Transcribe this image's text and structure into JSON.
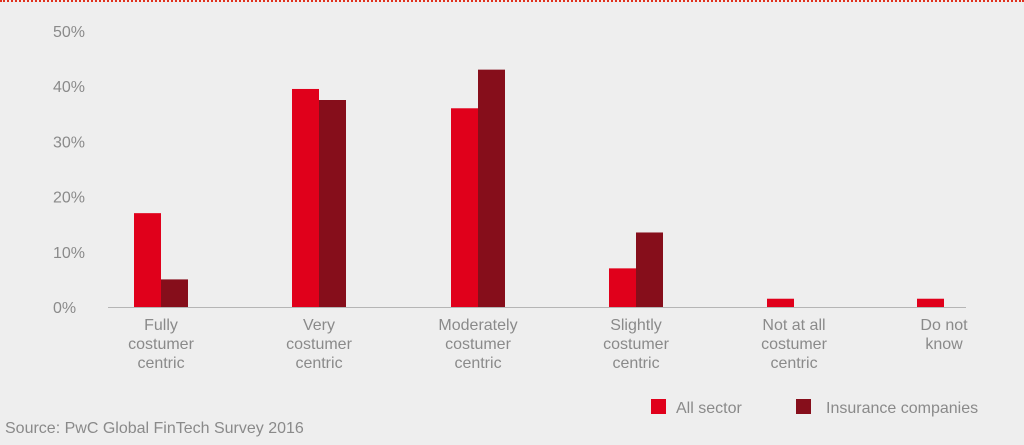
{
  "chart_data": {
    "type": "bar",
    "categories": [
      [
        "Fully",
        "costumer",
        "centric"
      ],
      [
        "Very",
        "costumer",
        "centric"
      ],
      [
        "Moderately",
        "costumer",
        "centric"
      ],
      [
        "Slightly",
        "costumer",
        "centric"
      ],
      [
        "Not at all",
        "costumer",
        "centric"
      ],
      [
        "Do not",
        "know"
      ]
    ],
    "series": [
      {
        "name": "All sector",
        "color": "#e0001b",
        "values": [
          17,
          39.5,
          36,
          7,
          1.5,
          1.5
        ]
      },
      {
        "name": "Insurance companies",
        "color": "#860e1b",
        "values": [
          5,
          37.5,
          43,
          13.5,
          0,
          0
        ]
      }
    ],
    "ylim": [
      0,
      50
    ],
    "yticks": [
      "0%",
      "10%",
      "20%",
      "30%",
      "40%",
      "50%"
    ],
    "grid": false,
    "legend_position": "bottom-right"
  },
  "source": "Source: PwC Global FinTech Survey 2016"
}
